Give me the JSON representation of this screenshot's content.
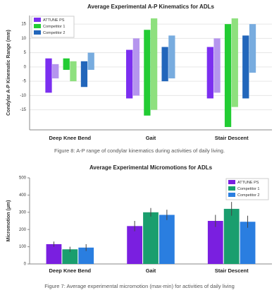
{
  "chart_data": [
    {
      "type": "range-bar",
      "title": "Average Experimental A-P Kinematics for ADLs",
      "y_label": "Condylar A-P Kinematic Range (mm)",
      "caption": "Figure 8: A-P range of condylar kinematics during activities of daily living.",
      "categories": [
        "Deep Knee Bend",
        "Gait",
        "Stair Descent"
      ],
      "ylim": [
        -22,
        18
      ],
      "yticks": [
        -15,
        -10,
        -5,
        0,
        5,
        10,
        15
      ],
      "grid": true,
      "legend": "upper left",
      "series": [
        {
          "name": "ATTUNE PS",
          "color": "#7b2ff0",
          "light_color": "#b595ee",
          "values": [
            [
              [
                -9,
                3
              ],
              [
                -4,
                1
              ]
            ],
            [
              [
                -11,
                6
              ],
              [
                -10,
                10
              ]
            ],
            [
              [
                -11,
                7
              ],
              [
                -9,
                10
              ]
            ]
          ]
        },
        {
          "name": "Competitor 1",
          "color": "#22cc33",
          "light_color": "#8ee07e",
          "values": [
            [
              [
                -1,
                3
              ],
              [
                -5,
                2
              ]
            ],
            [
              [
                -17,
                13
              ],
              [
                -15,
                17
              ]
            ],
            [
              [
                -21,
                15
              ],
              [
                -14,
                17
              ]
            ]
          ]
        },
        {
          "name": "Competitor 2",
          "color": "#2266bb",
          "light_color": "#78acdf",
          "values": [
            [
              [
                -7,
                2
              ],
              [
                -1,
                5
              ]
            ],
            [
              [
                -5,
                7
              ],
              [
                -4,
                11
              ]
            ],
            [
              [
                -11,
                11
              ],
              [
                -2,
                15
              ]
            ]
          ]
        }
      ]
    },
    {
      "type": "bar",
      "title": "Average Experimental Micromotions for ADLs",
      "y_label": "Micromotion (µm)",
      "caption": "Figure 7: Average experimental micromotion (max-min) for activities of daily living",
      "categories": [
        "Deep Knee Bend",
        "Gait",
        "Stair Descent"
      ],
      "ylim": [
        0,
        500
      ],
      "yticks": [
        0,
        100,
        200,
        300,
        400,
        500
      ],
      "grid": false,
      "legend": "upper right",
      "series": [
        {
          "name": "ATTUNE PS",
          "color": "#7a1fe0",
          "values": [
            115,
            220,
            250
          ],
          "errors": [
            15,
            30,
            35
          ]
        },
        {
          "name": "Competitor 1",
          "color": "#1a9e6e",
          "values": [
            85,
            300,
            320
          ],
          "errors": [
            15,
            25,
            40
          ]
        },
        {
          "name": "Competitor 2",
          "color": "#2a7ee0",
          "values": [
            95,
            285,
            245
          ],
          "errors": [
            20,
            30,
            35
          ]
        }
      ]
    }
  ]
}
